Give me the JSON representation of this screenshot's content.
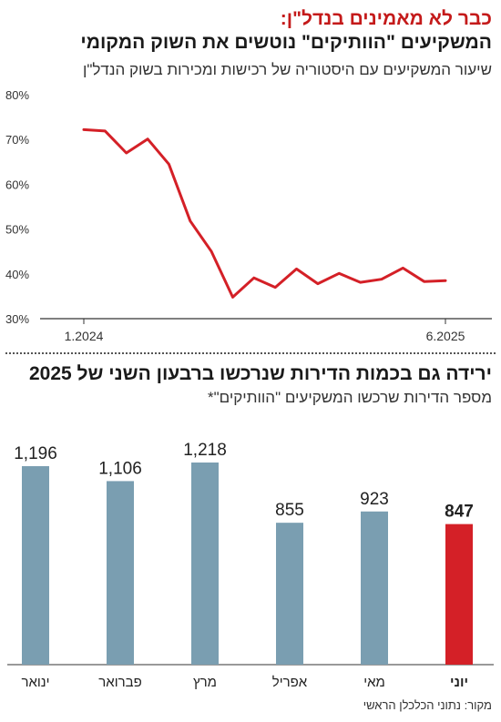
{
  "header": {
    "title_line1": "כבר לא מאמינים בנדל\"ן:",
    "title_line2": "המשקיעים \"הוותיקים\" נוטשים את השוק המקומי",
    "subtitle": "שיעור המשקיעים עם היסטוריה של רכישות ומכירות בשוק הנדל\"ן"
  },
  "second": {
    "title": "ירידה גם בכמות הדירות שנרכשו ברבעון השני של 2025",
    "subtitle": "מספר הדירות שרכשו המשקיעים \"הוותיקים\"*"
  },
  "source": "מקור: נתוני הכלכלן הראשי",
  "colors": {
    "line": "#d42027",
    "bar": "#7a9eb1",
    "bar_highlight": "#d42027",
    "axis": "#333333"
  },
  "chart_data": [
    {
      "type": "line",
      "title": "המשקיעים \"הוותיקים\" נוטשים את השוק המקומי",
      "ylim": [
        30,
        80
      ],
      "yticks": [
        30,
        40,
        50,
        60,
        70,
        80
      ],
      "ytick_labels": [
        "30%",
        "40%",
        "50%",
        "60%",
        "70%",
        "80%"
      ],
      "x_tick_labels": [
        "1.2024",
        "6.2025"
      ],
      "x_tick_index": [
        0,
        17
      ],
      "series": [
        {
          "values": [
            72.2,
            71.9,
            67.0,
            70.1,
            64.5,
            51.8,
            45.0,
            34.8,
            39.1,
            37.0,
            41.1,
            37.8,
            40.1,
            38.1,
            38.8,
            41.3,
            38.3,
            38.5
          ]
        }
      ],
      "grid": false
    },
    {
      "type": "bar",
      "title": "ירידה גם בכמות הדירות שנרכשו ברבעון השני של 2025",
      "categories": [
        "ינואר",
        "פברואר",
        "מרץ",
        "אפריל",
        "מאי",
        "יוני"
      ],
      "values": [
        1196,
        1106,
        1218,
        855,
        923,
        847
      ],
      "value_labels": [
        "1,196",
        "1,106",
        "1,218",
        "855",
        "923",
        "847"
      ],
      "highlight": "יוני",
      "ylim": [
        0,
        1250
      ]
    }
  ]
}
